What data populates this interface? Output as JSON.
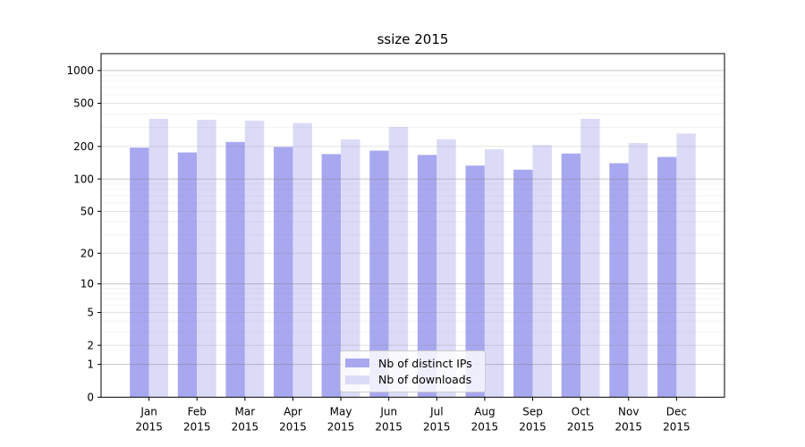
{
  "chart_data": {
    "type": "bar",
    "title": "ssize 2015",
    "scale": "log1p",
    "ylim": [
      0,
      1430
    ],
    "yticks": [
      0,
      1,
      2,
      5,
      10,
      20,
      50,
      100,
      200,
      500,
      1000
    ],
    "grid": true,
    "legend_position": "bottom-center",
    "categories": [
      {
        "line1": "Jan",
        "line2": "2015"
      },
      {
        "line1": "Feb",
        "line2": "2015"
      },
      {
        "line1": "Mar",
        "line2": "2015"
      },
      {
        "line1": "Apr",
        "line2": "2015"
      },
      {
        "line1": "May",
        "line2": "2015"
      },
      {
        "line1": "Jun",
        "line2": "2015"
      },
      {
        "line1": "Jul",
        "line2": "2015"
      },
      {
        "line1": "Aug",
        "line2": "2015"
      },
      {
        "line1": "Sep",
        "line2": "2015"
      },
      {
        "line1": "Oct",
        "line2": "2015"
      },
      {
        "line1": "Nov",
        "line2": "2015"
      },
      {
        "line1": "Dec",
        "line2": "2015"
      }
    ],
    "series": [
      {
        "name": "Nb of distinct IPs",
        "color": "#a8a8f0",
        "values": [
          195,
          176,
          220,
          198,
          170,
          183,
          167,
          133,
          122,
          172,
          140,
          160
        ]
      },
      {
        "name": "Nb of downloads",
        "color": "#dbdbf8",
        "values": [
          360,
          352,
          346,
          329,
          232,
          303,
          233,
          188,
          206,
          360,
          215,
          263
        ]
      }
    ]
  }
}
